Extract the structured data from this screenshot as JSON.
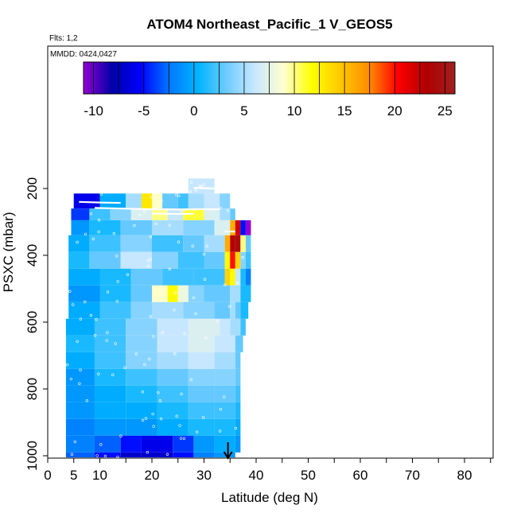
{
  "chart_data": {
    "type": "heatmap",
    "title": "ATOM4 Northeast_Pacific_1 V_GEOS5",
    "flights_note": "Flts: 1,2",
    "dates_note": "MMDD: 0424,0427",
    "xlabel": "Latitude (deg N)",
    "ylabel": "PSXC (mbar)",
    "xlim": [
      0,
      85
    ],
    "ylim": [
      1015,
      0
    ],
    "x_ticks": [
      0,
      5,
      10,
      20,
      30,
      40,
      50,
      60,
      70,
      80
    ],
    "x_tick_labels": [
      "0",
      "5",
      "10",
      "20",
      "30",
      "40",
      "50",
      "60",
      "70",
      "80"
    ],
    "y_ticks": [
      200,
      400,
      600,
      800,
      1000
    ],
    "y_tick_labels": [
      "200",
      "400",
      "600",
      "800",
      "1000"
    ],
    "colorbar": {
      "min": -11,
      "max": 26,
      "ticks": [
        -10,
        -5,
        0,
        5,
        10,
        15,
        20,
        25
      ],
      "tick_labels": [
        "-10",
        "-5",
        "0",
        "5",
        "10",
        "15",
        "20",
        "25"
      ],
      "colors": [
        "#9400d3",
        "#0000a8",
        "#0000ff",
        "#0078ff",
        "#00b4ff",
        "#6ecbff",
        "#c8e8ff",
        "#ffffd0",
        "#ffff00",
        "#ffc800",
        "#ff8c00",
        "#ff0000",
        "#b00000",
        "#a02020"
      ]
    },
    "marker": {
      "lat": 34.6,
      "label": "arrow"
    },
    "rows": [
      {
        "p_top": 170,
        "p_bot": 215,
        "segs": [
          [
            27,
            32,
            6
          ]
        ]
      },
      {
        "p_top": 215,
        "p_bot": 260,
        "segs": [
          [
            5,
            10,
            -6
          ],
          [
            10,
            15,
            0
          ],
          [
            15,
            18,
            5
          ],
          [
            18,
            20,
            13
          ],
          [
            20,
            22,
            9
          ],
          [
            22,
            25,
            3
          ],
          [
            25,
            27,
            2
          ],
          [
            27,
            30,
            5
          ],
          [
            30,
            33,
            6
          ],
          [
            33,
            35,
            4
          ]
        ]
      },
      {
        "p_top": 260,
        "p_bot": 295,
        "segs": [
          [
            4.5,
            8,
            -4
          ],
          [
            8,
            12,
            2
          ],
          [
            12,
            16,
            4
          ],
          [
            16,
            20,
            7
          ],
          [
            20,
            23,
            10
          ],
          [
            23,
            26,
            6
          ],
          [
            26,
            30,
            11
          ],
          [
            30,
            33,
            7
          ],
          [
            33,
            35,
            5
          ],
          [
            35,
            36,
            3
          ]
        ]
      },
      {
        "p_top": 295,
        "p_bot": 340,
        "segs": [
          [
            4.5,
            8,
            -1
          ],
          [
            8,
            14,
            1
          ],
          [
            14,
            20,
            3
          ],
          [
            20,
            26,
            5
          ],
          [
            26,
            32,
            4
          ],
          [
            32,
            35,
            7
          ],
          [
            35,
            36,
            16
          ],
          [
            36,
            37,
            22
          ],
          [
            37,
            38,
            -5
          ],
          [
            38,
            39,
            -11
          ]
        ]
      },
      {
        "p_top": 340,
        "p_bot": 390,
        "segs": [
          [
            4,
            8,
            0
          ],
          [
            8,
            14,
            2
          ],
          [
            14,
            20,
            4
          ],
          [
            20,
            26,
            2
          ],
          [
            26,
            30,
            3
          ],
          [
            30,
            34,
            5
          ],
          [
            34,
            35,
            16
          ],
          [
            35,
            36,
            23
          ],
          [
            36,
            37,
            24
          ],
          [
            37,
            38,
            10
          ],
          [
            38,
            39,
            3
          ]
        ]
      },
      {
        "p_top": 390,
        "p_bot": 440,
        "segs": [
          [
            4,
            8,
            1
          ],
          [
            8,
            14,
            3
          ],
          [
            14,
            20,
            6
          ],
          [
            20,
            25,
            4
          ],
          [
            25,
            30,
            2
          ],
          [
            30,
            34,
            3
          ],
          [
            34,
            35,
            12
          ],
          [
            35,
            36,
            20
          ],
          [
            36,
            37,
            14
          ],
          [
            37,
            38,
            4
          ],
          [
            38,
            39,
            2
          ]
        ]
      },
      {
        "p_top": 440,
        "p_bot": 490,
        "segs": [
          [
            4,
            10,
            0
          ],
          [
            10,
            16,
            1
          ],
          [
            16,
            22,
            3
          ],
          [
            22,
            28,
            2
          ],
          [
            28,
            34,
            2
          ],
          [
            34,
            35,
            14
          ],
          [
            35,
            36,
            12
          ],
          [
            36,
            37,
            6
          ],
          [
            37,
            38,
            1
          ],
          [
            38,
            39,
            -2
          ]
        ]
      },
      {
        "p_top": 490,
        "p_bot": 540,
        "segs": [
          [
            4,
            10,
            -1
          ],
          [
            10,
            16,
            1
          ],
          [
            16,
            20,
            3
          ],
          [
            20,
            23,
            9
          ],
          [
            23,
            25,
            12
          ],
          [
            25,
            27,
            8
          ],
          [
            27,
            30,
            4
          ],
          [
            30,
            35,
            3
          ],
          [
            35,
            37,
            5
          ],
          [
            37,
            39,
            1
          ]
        ]
      },
      {
        "p_top": 540,
        "p_bot": 590,
        "segs": [
          [
            4,
            10,
            0
          ],
          [
            10,
            16,
            2
          ],
          [
            16,
            20,
            4
          ],
          [
            20,
            26,
            5
          ],
          [
            26,
            32,
            4
          ],
          [
            32,
            35,
            3
          ],
          [
            35,
            36,
            5
          ],
          [
            36,
            37,
            3
          ],
          [
            37,
            38.5,
            1
          ]
        ]
      },
      {
        "p_top": 590,
        "p_bot": 640,
        "segs": [
          [
            3.5,
            9,
            0
          ],
          [
            9,
            15,
            2
          ],
          [
            15,
            21,
            4
          ],
          [
            21,
            27,
            6
          ],
          [
            27,
            33,
            7
          ],
          [
            33,
            35,
            6
          ],
          [
            35,
            37,
            5
          ],
          [
            37,
            38,
            2
          ]
        ]
      },
      {
        "p_top": 640,
        "p_bot": 690,
        "segs": [
          [
            3.5,
            9,
            1
          ],
          [
            9,
            15,
            2
          ],
          [
            15,
            21,
            4
          ],
          [
            21,
            27,
            6
          ],
          [
            27,
            32,
            7
          ],
          [
            32,
            36,
            6
          ],
          [
            36,
            37.5,
            3
          ]
        ]
      },
      {
        "p_top": 690,
        "p_bot": 740,
        "segs": [
          [
            3.5,
            9,
            0
          ],
          [
            9,
            15,
            2
          ],
          [
            15,
            21,
            4
          ],
          [
            21,
            27,
            5
          ],
          [
            27,
            32,
            6
          ],
          [
            32,
            36,
            5
          ],
          [
            36,
            37,
            3
          ]
        ]
      },
      {
        "p_top": 740,
        "p_bot": 790,
        "segs": [
          [
            3.5,
            9,
            -1
          ],
          [
            9,
            15,
            1
          ],
          [
            15,
            21,
            2
          ],
          [
            21,
            27,
            3
          ],
          [
            27,
            32,
            4
          ],
          [
            32,
            36,
            4
          ],
          [
            36,
            37,
            3
          ]
        ]
      },
      {
        "p_top": 790,
        "p_bot": 840,
        "segs": [
          [
            3.5,
            9,
            -1
          ],
          [
            9,
            15,
            0
          ],
          [
            15,
            21,
            1
          ],
          [
            21,
            27,
            2
          ],
          [
            27,
            32,
            3
          ],
          [
            32,
            36,
            3
          ],
          [
            36,
            37,
            2
          ]
        ]
      },
      {
        "p_top": 840,
        "p_bot": 890,
        "segs": [
          [
            3.5,
            9,
            -1
          ],
          [
            9,
            15,
            0
          ],
          [
            15,
            21,
            0
          ],
          [
            21,
            27,
            1
          ],
          [
            27,
            32,
            2
          ],
          [
            32,
            36,
            2
          ],
          [
            36,
            37,
            1
          ]
        ]
      },
      {
        "p_top": 890,
        "p_bot": 940,
        "segs": [
          [
            3.5,
            9,
            -2
          ],
          [
            9,
            15,
            -1
          ],
          [
            15,
            21,
            -1
          ],
          [
            21,
            27,
            0
          ],
          [
            27,
            32,
            1
          ],
          [
            32,
            36,
            1
          ],
          [
            36,
            37,
            0
          ]
        ]
      },
      {
        "p_top": 940,
        "p_bot": 990,
        "segs": [
          [
            3.5,
            9,
            -2
          ],
          [
            9,
            14,
            -3
          ],
          [
            14,
            18,
            -5
          ],
          [
            18,
            24,
            -6
          ],
          [
            24,
            28,
            -4
          ],
          [
            28,
            32,
            -1
          ],
          [
            32,
            36,
            0
          ],
          [
            36,
            37,
            -1
          ]
        ]
      },
      {
        "p_top": 990,
        "p_bot": 1005,
        "segs": [
          [
            3.5,
            9,
            -3
          ],
          [
            9,
            14,
            -5
          ],
          [
            14,
            18,
            -7
          ],
          [
            18,
            24,
            -7
          ],
          [
            24,
            28,
            -5
          ],
          [
            28,
            32,
            -2
          ],
          [
            32,
            36,
            -1
          ]
        ]
      }
    ],
    "flight_tracks": [
      [
        [
          6,
          240
        ],
        [
          10,
          242
        ],
        [
          14,
          243
        ]
      ],
      [
        [
          9,
          258
        ],
        [
          14,
          260
        ],
        [
          20,
          262
        ],
        [
          26,
          263
        ],
        [
          30,
          262
        ],
        [
          33,
          262
        ]
      ],
      [
        [
          28,
          198
        ],
        [
          32,
          200
        ]
      ],
      [
        [
          20,
          275
        ],
        [
          24,
          276
        ],
        [
          28,
          276
        ]
      ],
      [
        [
          34,
          328
        ],
        [
          36,
          329
        ]
      ]
    ]
  }
}
